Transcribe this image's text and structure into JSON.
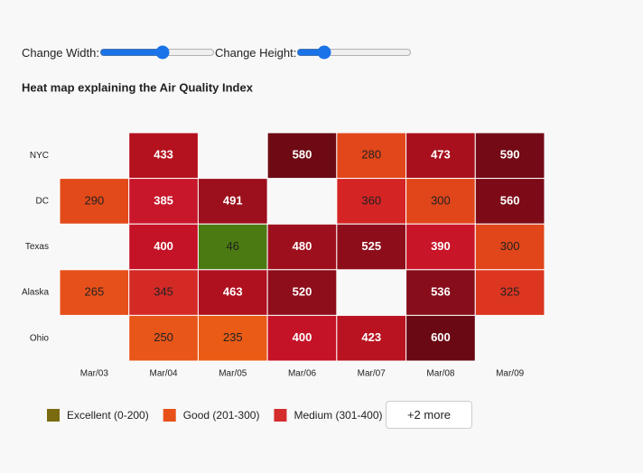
{
  "controls": {
    "width_label": "Change Width:",
    "height_label": "Change Height:"
  },
  "chart_data": {
    "type": "heatmap",
    "title": "Heat map explaining the Air Quality Index",
    "categories": [
      "Mar/03",
      "Mar/04",
      "Mar/05",
      "Mar/06",
      "Mar/07",
      "Mar/08",
      "Mar/09"
    ],
    "rows": [
      "NYC",
      "DC",
      "Texas",
      "Alaska",
      "Ohio"
    ],
    "values": [
      [
        null,
        433,
        null,
        580,
        280,
        473,
        590
      ],
      [
        290,
        385,
        491,
        null,
        360,
        300,
        560
      ],
      [
        null,
        400,
        46,
        480,
        525,
        390,
        300
      ],
      [
        265,
        345,
        463,
        520,
        null,
        536,
        325
      ],
      [
        null,
        250,
        235,
        400,
        423,
        600,
        null
      ]
    ],
    "colors": [
      [
        null,
        "#b5121f",
        null,
        "#6e0a14",
        "#e2461b",
        "#a8101e",
        "#730a16"
      ],
      [
        "#e24a1a",
        "#c8162a",
        "#9c0f1c",
        null,
        "#d42424",
        "#e0461a",
        "#7c0b17"
      ],
      [
        null,
        "#c41226",
        "#4b7a12",
        "#9e0f1d",
        "#8d0d1a",
        "#c81528",
        "#e0461a"
      ],
      [
        "#e6501a",
        "#d42a26",
        "#b0111f",
        "#8e0e1b",
        null,
        "#870d1a",
        "#dc3621"
      ],
      [
        null,
        "#e8561a",
        "#ea5c16",
        "#c41226",
        "#b91220",
        "#6a0913",
        null
      ]
    ],
    "legend": [
      {
        "name": "Excellent (0-200)",
        "color": "#7a6a10"
      },
      {
        "name": "Good (201-300)",
        "color": "#e8501a"
      },
      {
        "name": "Medium (301-400)",
        "color": "#d42b2b"
      }
    ],
    "legend_more": "+2 more"
  }
}
